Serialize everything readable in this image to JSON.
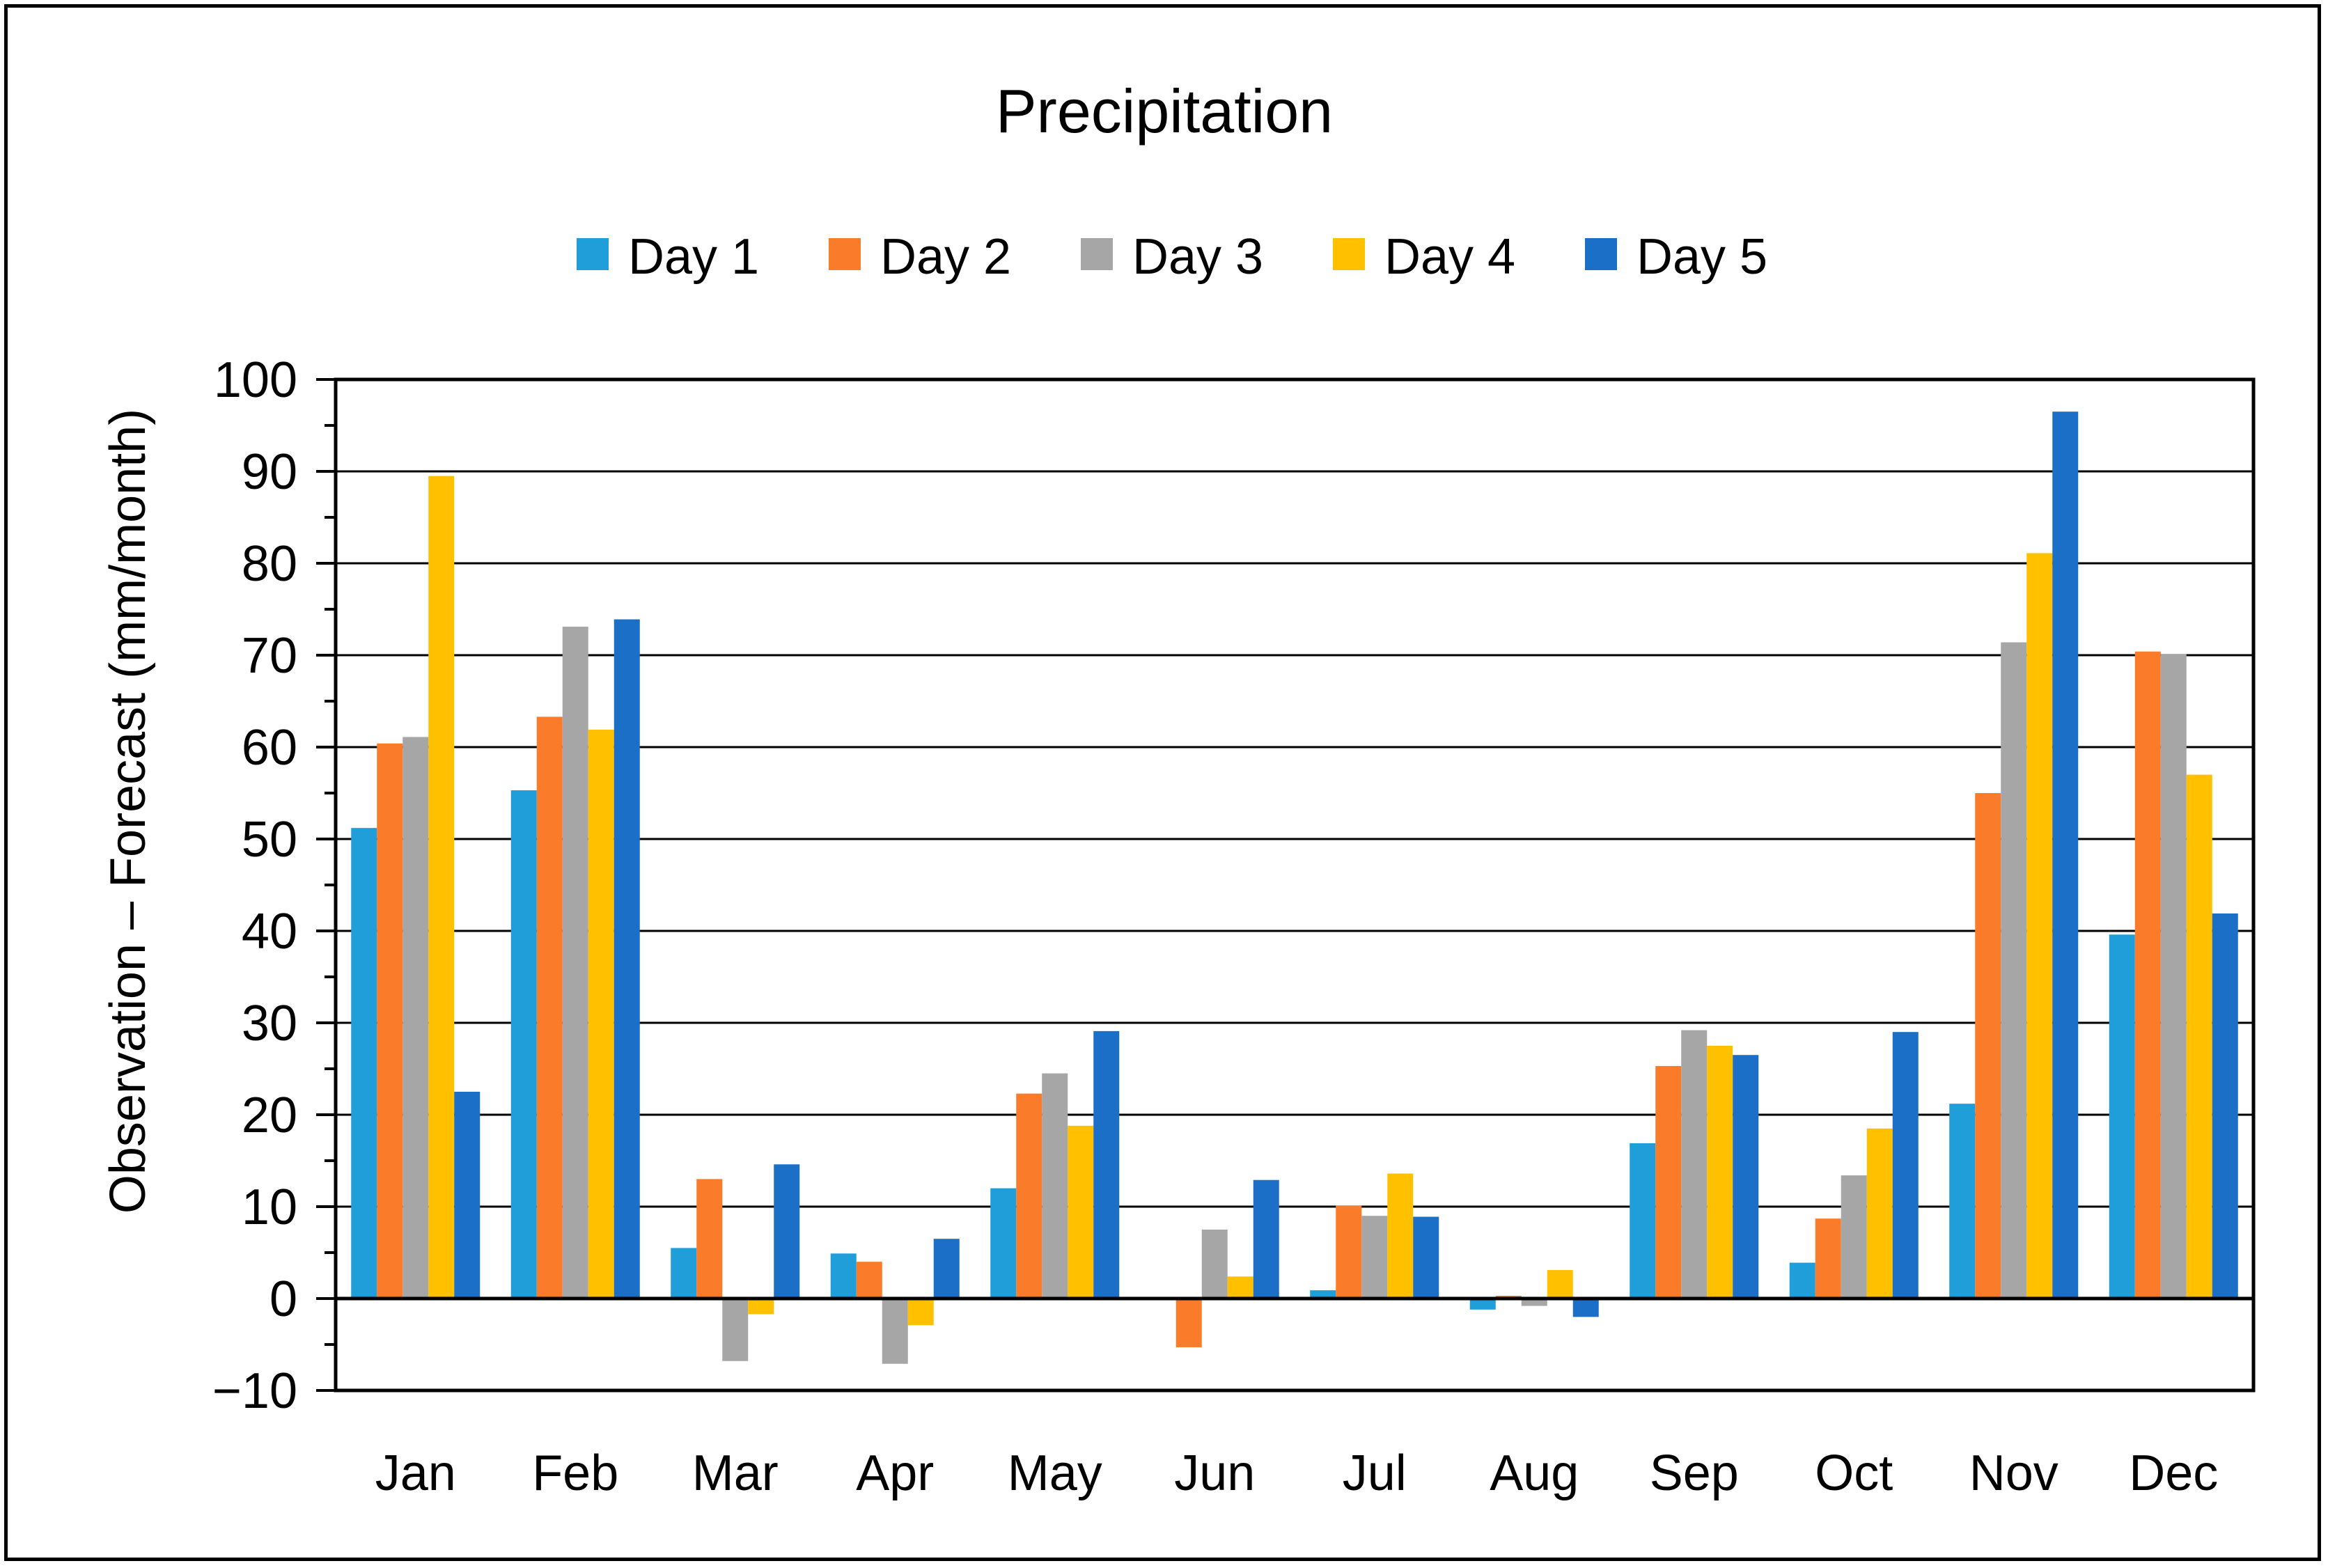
{
  "chart_data": {
    "type": "bar",
    "title": "Precipitation",
    "xlabel": "",
    "ylabel": "Observation – Forecast (mm/month)",
    "ylim": [
      -10,
      100
    ],
    "ytick_step": 10,
    "grid": true,
    "legend_position": "top",
    "categories": [
      "Jan",
      "Feb",
      "Mar",
      "Apr",
      "May",
      "Jun",
      "Jul",
      "Aug",
      "Sep",
      "Oct",
      "Nov",
      "Dec"
    ],
    "series": [
      {
        "name": "Day 1",
        "color": "#1f9ed9",
        "values": [
          51.2,
          55.3,
          5.5,
          4.9,
          12.0,
          0.0,
          0.9,
          -1.2,
          16.9,
          3.9,
          21.2,
          39.6
        ]
      },
      {
        "name": "Day 2",
        "color": "#fa7b2a",
        "values": [
          60.4,
          63.3,
          13.0,
          4.0,
          22.3,
          -5.3,
          10.1,
          0.3,
          25.3,
          8.7,
          55.0,
          70.4
        ]
      },
      {
        "name": "Day 3",
        "color": "#a6a6a6",
        "values": [
          61.1,
          73.1,
          -6.8,
          -7.1,
          24.5,
          7.5,
          9.0,
          -0.8,
          29.2,
          13.4,
          71.4,
          70.1
        ]
      },
      {
        "name": "Day 4",
        "color": "#ffc000",
        "values": [
          89.5,
          61.9,
          -1.7,
          -2.9,
          18.8,
          2.4,
          13.6,
          3.1,
          27.5,
          18.5,
          81.1,
          57.0
        ]
      },
      {
        "name": "Day 5",
        "color": "#1c6fc6",
        "values": [
          22.5,
          73.9,
          14.6,
          6.5,
          29.1,
          12.9,
          8.9,
          -2.0,
          26.5,
          29.0,
          96.5,
          41.9
        ]
      }
    ]
  }
}
